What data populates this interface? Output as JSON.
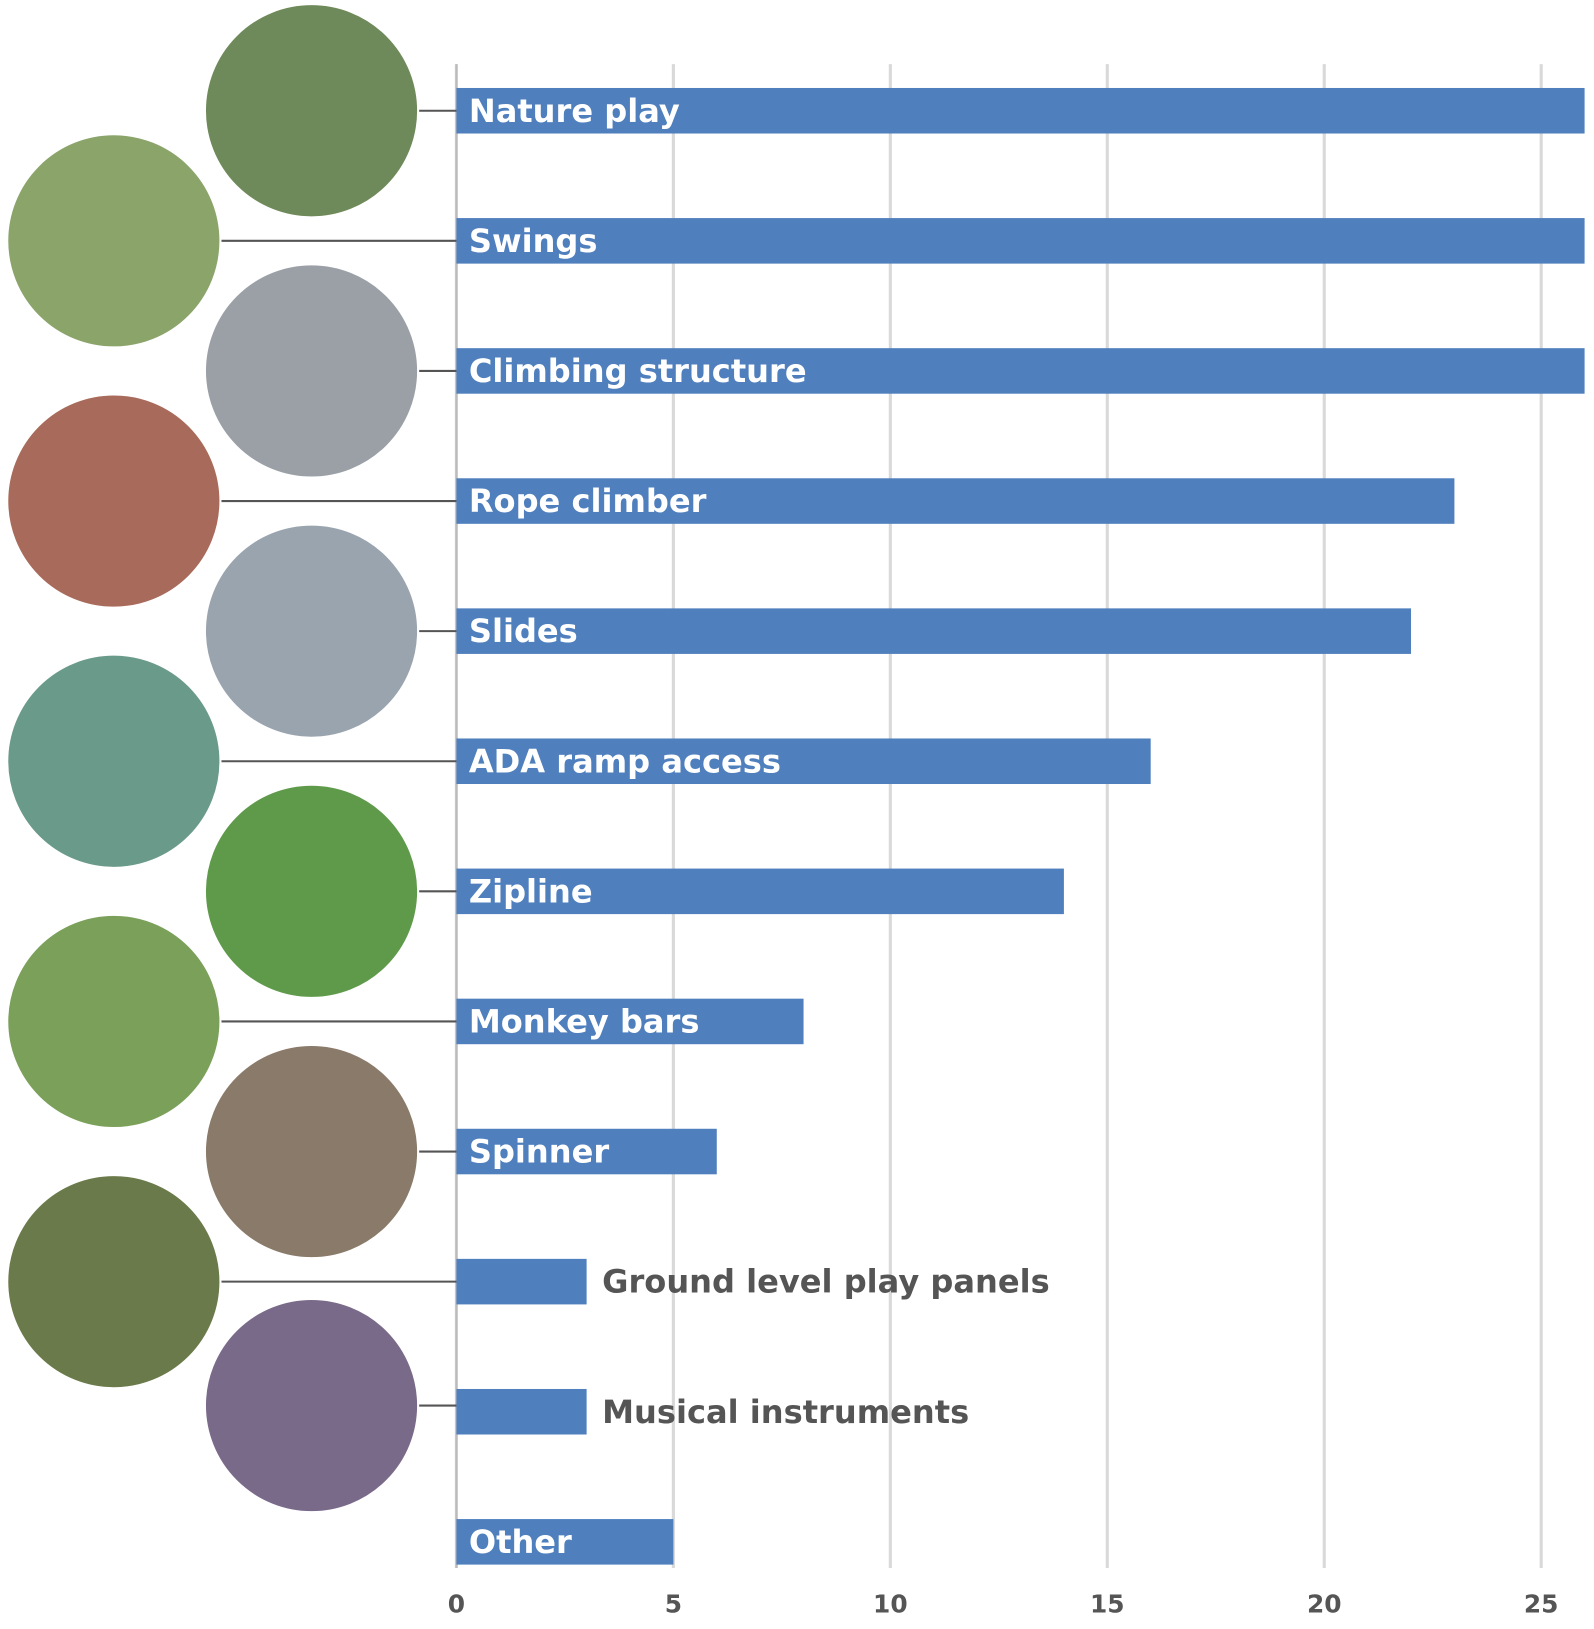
{
  "chart_data": {
    "type": "bar",
    "orientation": "horizontal",
    "categories": [
      "Nature play",
      "Swings",
      "Climbing structure",
      "Rope climber",
      "Slides",
      "ADA ramp access",
      "Zipline",
      "Monkey bars",
      "Spinner",
      "Ground level play panels",
      "Musical instruments",
      "Other"
    ],
    "values": [
      26,
      26,
      26,
      23,
      22,
      16,
      14,
      8,
      6,
      3,
      3,
      5
    ],
    "color": "#4f7fbd",
    "xlim": [
      0,
      26
    ],
    "xticks": [
      0,
      5,
      10,
      15,
      20,
      25
    ],
    "grid": true
  }
}
